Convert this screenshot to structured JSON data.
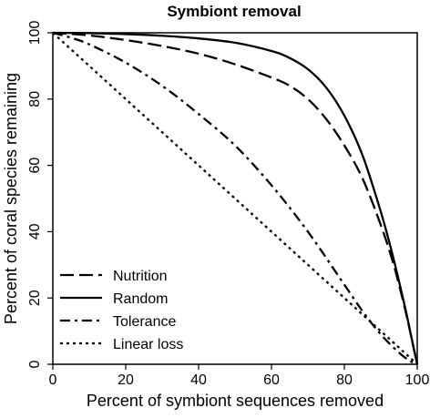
{
  "chart_data": {
    "type": "line",
    "title": "Symbiont removal",
    "xlabel": "Percent of symbiont sequences removed",
    "ylabel": "Percent of coral species remaining",
    "xlim": [
      0,
      100
    ],
    "ylim": [
      0,
      100
    ],
    "xticks": [
      0,
      20,
      40,
      60,
      80,
      100
    ],
    "yticks": [
      0,
      20,
      40,
      60,
      80,
      100
    ],
    "legend_position": "bottom-left",
    "grid": false,
    "series": [
      {
        "name": "Nutrition",
        "dash": "long-dash",
        "x": [
          0,
          10,
          20,
          30,
          40,
          50,
          60,
          65,
          70,
          75,
          80,
          85,
          90,
          93,
          95,
          97,
          99,
          100
        ],
        "y": [
          100,
          99.2,
          97.8,
          96,
          93.7,
          90.5,
          86.5,
          84,
          80,
          74,
          66,
          56,
          42,
          32,
          24,
          15,
          5,
          0
        ]
      },
      {
        "name": "Random",
        "dash": "solid",
        "x": [
          0,
          10,
          20,
          30,
          40,
          50,
          60,
          65,
          70,
          75,
          80,
          85,
          90,
          93,
          95,
          97,
          99,
          100
        ],
        "y": [
          100,
          99.9,
          99.6,
          99.1,
          98.3,
          97,
          94.5,
          92.4,
          89,
          83.5,
          75,
          63,
          46,
          34,
          25,
          15.5,
          5,
          0
        ]
      },
      {
        "name": "Tolerance",
        "dash": "dash-dot",
        "x": [
          0,
          5,
          10,
          20,
          30,
          40,
          50,
          60,
          70,
          80,
          85,
          90,
          95,
          98,
          100
        ],
        "y": [
          100,
          98.5,
          96.5,
          91,
          84,
          75.5,
          66,
          54,
          40,
          24,
          16,
          9,
          3.5,
          1,
          0
        ]
      },
      {
        "name": "Linear loss",
        "dash": "dotted",
        "x": [
          0,
          100
        ],
        "y": [
          100,
          0
        ]
      }
    ]
  }
}
